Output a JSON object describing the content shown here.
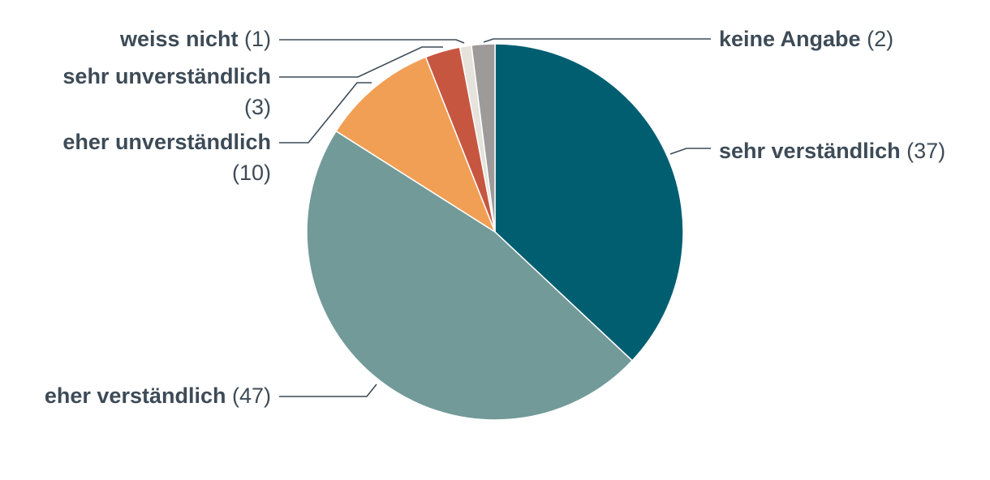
{
  "chart_data": {
    "type": "pie",
    "slices": [
      {
        "label": "sehr verständlich",
        "value": 37,
        "value_text": "(37)",
        "color": "#005e71"
      },
      {
        "label": "eher verständlich",
        "value": 47,
        "value_text": "(47)",
        "color": "#729a99"
      },
      {
        "label": "eher unverständlich",
        "value": 10,
        "value_text": "(10)",
        "color": "#f19f55"
      },
      {
        "label": "sehr unverständlich",
        "value": 3,
        "value_text": "(3)",
        "color": "#c75640"
      },
      {
        "label": "weiss nicht",
        "value": 1,
        "value_text": "(1)",
        "color": "#e6e2dc"
      },
      {
        "label": "keine Angabe",
        "value": 2,
        "value_text": "(2)",
        "color": "#9f9a9a"
      }
    ],
    "start_angle_deg": 0,
    "direction": "clockwise",
    "legend": "none",
    "labels": "outside-with-leader-lines"
  }
}
